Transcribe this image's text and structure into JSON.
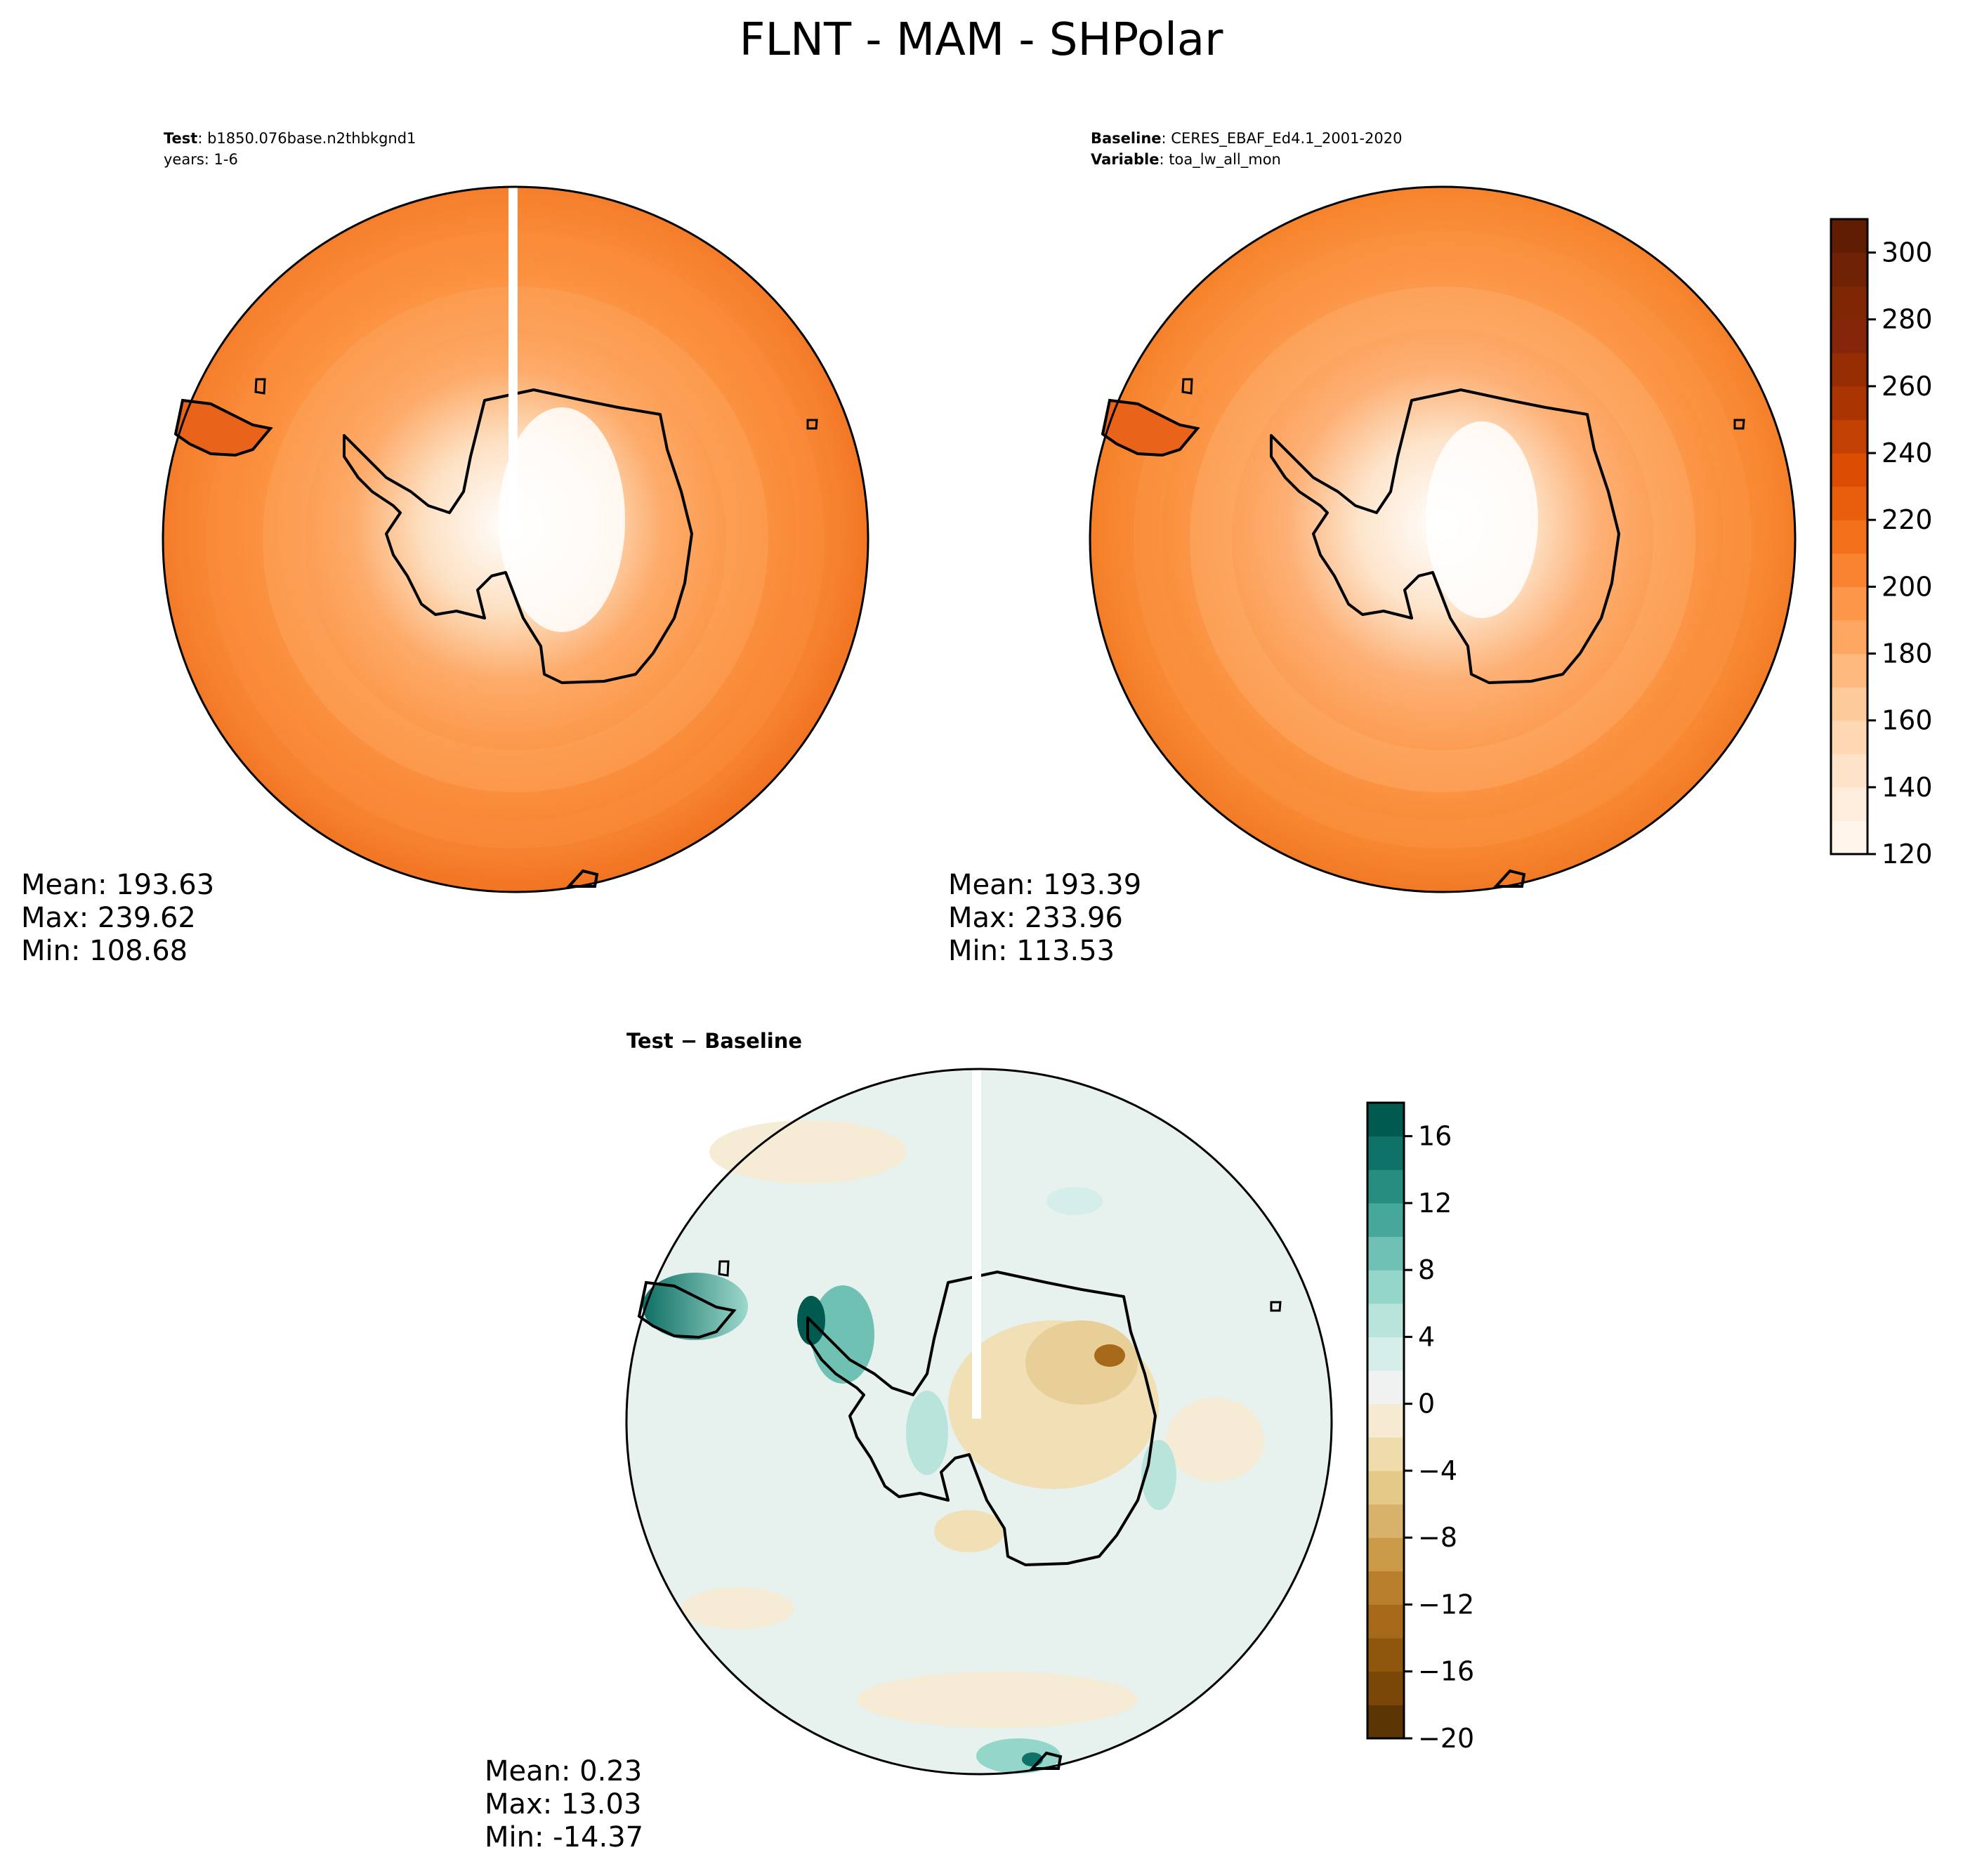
{
  "figure": {
    "title": "FLNT - MAM - SHPolar"
  },
  "panels": {
    "test": {
      "label_key": "Test",
      "label_value": "b1850.076base.n2thbkgnd1",
      "sub_line": "years: 1-6",
      "stats": {
        "mean": "Mean: 193.63",
        "max": "Max: 239.62",
        "min": "Min: 108.68"
      }
    },
    "baseline": {
      "label_key": "Baseline",
      "label_value": "CERES_EBAF_Ed4.1_2001-2020",
      "var_key": "Variable",
      "var_value": "toa_lw_all_mon",
      "stats": {
        "mean": "Mean: 193.39",
        "max": "Max: 233.96",
        "min": "Min: 113.53"
      }
    },
    "diff": {
      "title": "Test − Baseline",
      "stats": {
        "mean": "Mean:  0.23",
        "max": "Max: 13.03",
        "min": "Min: -14.37"
      }
    }
  },
  "chart_data": [
    {
      "type": "heatmap",
      "panel": "test",
      "projection": "south-polar-stereographic",
      "colormap": "Oranges",
      "stats": {
        "mean": 193.63,
        "max": 239.62,
        "min": 108.68
      }
    },
    {
      "type": "heatmap",
      "panel": "baseline",
      "projection": "south-polar-stereographic",
      "colormap": "Oranges",
      "stats": {
        "mean": 193.39,
        "max": 233.96,
        "min": 113.53
      },
      "colorbar": {
        "range": [
          120,
          310
        ],
        "levels": [
          120,
          130,
          140,
          150,
          160,
          170,
          180,
          190,
          200,
          210,
          220,
          230,
          240,
          250,
          260,
          270,
          280,
          290,
          300,
          310
        ],
        "colors": [
          "#fff5eb",
          "#feeddc",
          "#fee3c8",
          "#fdd8b2",
          "#fdca99",
          "#fdb97e",
          "#fda762",
          "#fd9649",
          "#fa8331",
          "#f3701b",
          "#e95e0d",
          "#dc4c03",
          "#c24002",
          "#aa3503",
          "#962d03",
          "#85260a",
          "#7f2704",
          "#6f2204",
          "#611d03"
        ],
        "ticks": [
          120,
          140,
          160,
          180,
          200,
          220,
          240,
          260,
          280,
          300
        ],
        "tick_labels": [
          "120",
          "140",
          "160",
          "180",
          "200",
          "220",
          "240",
          "260",
          "280",
          "300"
        ]
      }
    },
    {
      "type": "heatmap",
      "panel": "diff",
      "projection": "south-polar-stereographic",
      "colormap": "BrBG",
      "stats": {
        "mean": 0.23,
        "max": 13.03,
        "min": -14.37
      },
      "colorbar": {
        "range": [
          -20,
          18
        ],
        "levels": [
          -20,
          -18,
          -16,
          -14,
          -12,
          -10,
          -8,
          -6,
          -4,
          -2,
          0,
          2,
          4,
          6,
          8,
          10,
          12,
          14,
          16,
          18
        ],
        "colors": [
          "#5c3505",
          "#7a4708",
          "#8f560e",
          "#a66819",
          "#ba7f2c",
          "#cb9a48",
          "#d8b26a",
          "#e5c988",
          "#f0dcaa",
          "#f6ead2",
          "#eff2f0",
          "#d5eee9",
          "#b9e4dc",
          "#95d6ca",
          "#6ec1b3",
          "#46a89a",
          "#278d81",
          "#0f7268",
          "#015a50"
        ],
        "ticks": [
          -20,
          -16,
          -12,
          -8,
          -4,
          0,
          4,
          8,
          12,
          16
        ],
        "tick_labels": [
          "−20",
          "−16",
          "−12",
          "−8",
          "−4",
          "0",
          "4",
          "8",
          "12",
          "16"
        ]
      }
    }
  ]
}
